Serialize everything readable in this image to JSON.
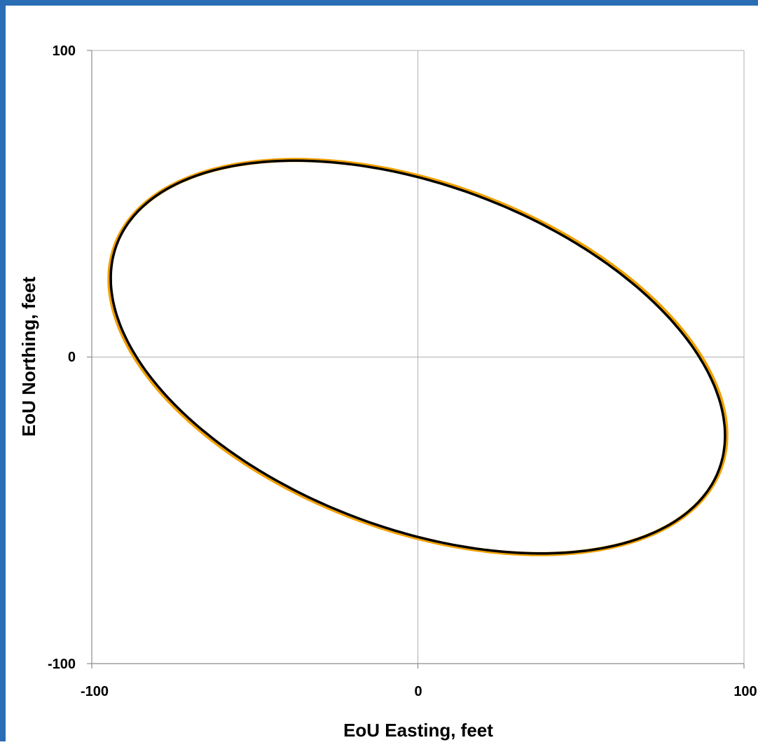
{
  "chart_data": {
    "type": "line",
    "title": "",
    "xlabel": "EoU Easting, feet",
    "ylabel": "EoU Northing, feet",
    "xlim": [
      -100,
      100
    ],
    "ylim": [
      -100,
      100
    ],
    "x_ticks": [
      "-100",
      "0",
      "100"
    ],
    "y_ticks": [
      "-100",
      "0",
      "100"
    ],
    "grid": true,
    "legend": "none",
    "series": [
      {
        "color": "#f0a000",
        "ellipse": {
          "center": [
            0,
            0
          ],
          "semi_major": 99.7,
          "semi_minor": 56.0,
          "rotation_deg": -22.5
        }
      },
      {
        "color": "#000000",
        "ellipse": {
          "center": [
            0,
            0
          ],
          "semi_major": 99.4,
          "semi_minor": 55.6,
          "rotation_deg": -22.7
        }
      }
    ]
  }
}
